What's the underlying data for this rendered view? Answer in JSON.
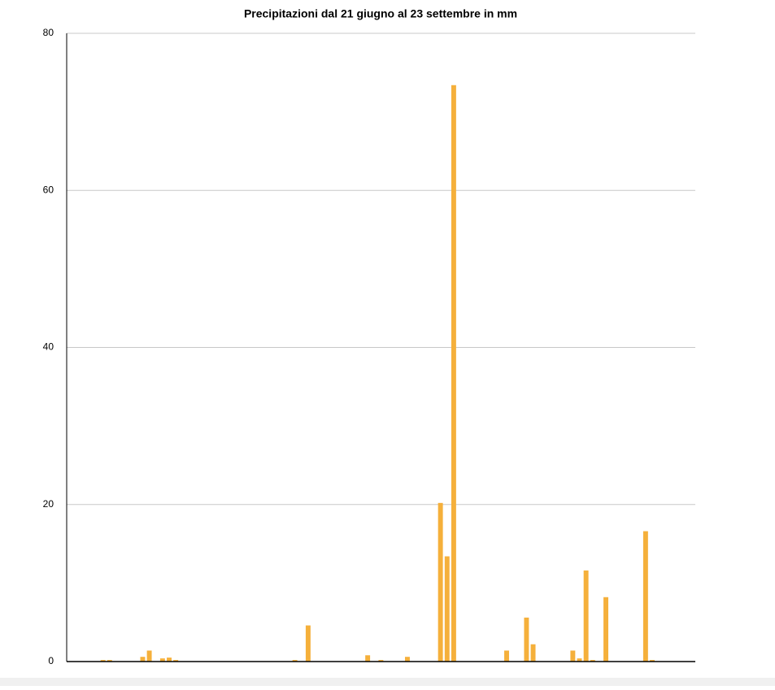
{
  "chart_data": {
    "type": "bar",
    "title": "Precipitazioni dal 21 giugno al 23 settembre in mm",
    "values": [
      0,
      0,
      0,
      0,
      0,
      0.2,
      0.2,
      0,
      0,
      0,
      0,
      0.6,
      1.4,
      0,
      0.4,
      0.5,
      0.2,
      0,
      0,
      0,
      0,
      0,
      0,
      0,
      0,
      0,
      0,
      0,
      0,
      0,
      0,
      0,
      0,
      0,
      0.2,
      0,
      4.6,
      0,
      0,
      0,
      0,
      0,
      0,
      0,
      0,
      0.8,
      0,
      0.2,
      0,
      0,
      0,
      0.6,
      0,
      0,
      0,
      0,
      20.2,
      13.4,
      73.4,
      0,
      0,
      0,
      0,
      0,
      0,
      0,
      1.4,
      0,
      0,
      5.6,
      2.2,
      0,
      0,
      0,
      0,
      0,
      1.4,
      0.4,
      11.6,
      0.2,
      0,
      8.2,
      0,
      0,
      0,
      0,
      0,
      16.6,
      0.2,
      0,
      0,
      0,
      0,
      0,
      0
    ],
    "color": "#f5b03b",
    "ylim": [
      0,
      80
    ],
    "yticks": [
      0,
      20,
      40,
      60,
      80
    ],
    "grid": true
  }
}
